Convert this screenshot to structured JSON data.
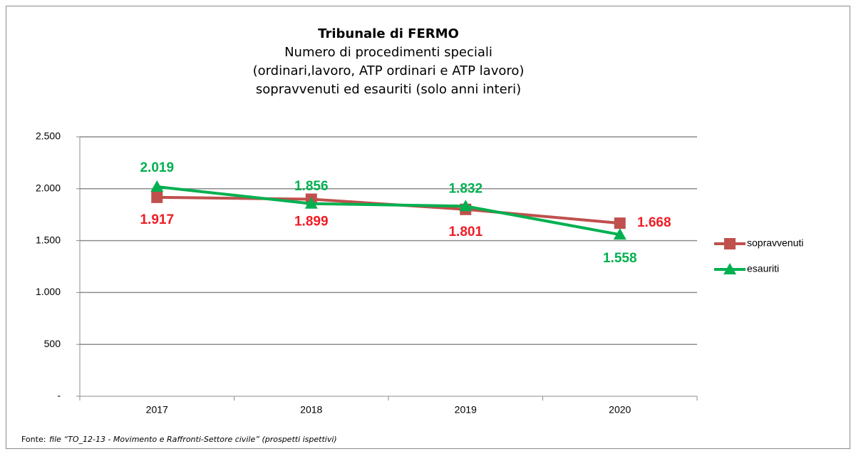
{
  "chart_data": {
    "type": "line",
    "title": "Tribunale di FERMO",
    "subtitle": [
      "Numero di procedimenti speciali",
      "(ordinari,lavoro, ATP ordinari e ATP lavoro)",
      "sopravvenuti ed esauriti (solo anni interi)"
    ],
    "categories": [
      "2017",
      "2018",
      "2019",
      "2020"
    ],
    "series": [
      {
        "name": "sopravvenuti",
        "color": "#c0504d",
        "label_color": "#ee1c25",
        "marker": "square",
        "values": [
          1917,
          1899,
          1801,
          1668
        ],
        "value_labels": [
          "1.917",
          "1.899",
          "1.801",
          "1.668"
        ]
      },
      {
        "name": "esauriti",
        "color": "#00b050",
        "label_color": "#00b050",
        "marker": "triangle",
        "values": [
          2019,
          1856,
          1832,
          1558
        ],
        "value_labels": [
          "2.019",
          "1.856",
          "1.832",
          "1.558"
        ]
      }
    ],
    "ylim": [
      0,
      2500
    ],
    "yticks": [
      {
        "value": 0,
        "label": "-"
      },
      500,
      {
        "value": 1000,
        "label": "1.000"
      },
      {
        "value": 1500,
        "label": "1.500"
      },
      {
        "value": 2000,
        "label": "2.000"
      },
      {
        "value": 2500,
        "label": "2.500"
      }
    ],
    "grid": true,
    "legend": "right",
    "source_label": "Fonte:",
    "source": "file “TO_12-13 - Movimento e Raffronti-Settore civile” (prospetti ispettivi)"
  }
}
